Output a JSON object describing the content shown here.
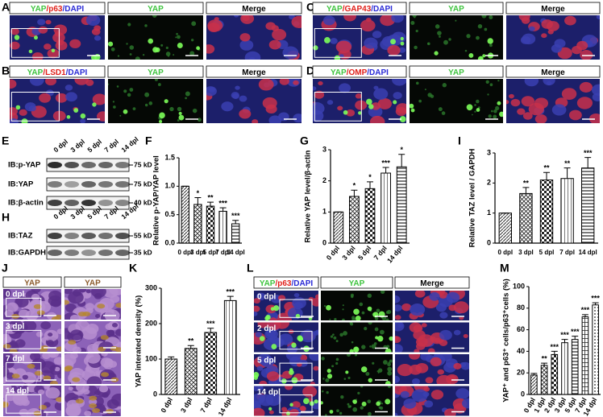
{
  "image_panels": [
    {
      "label": "A",
      "headers": [
        "YAP/p63/DAPI",
        "YAP",
        "Merge"
      ]
    },
    {
      "label": "C",
      "headers": [
        "YAP/GAP43/DAPI",
        "YAP",
        "Merge"
      ]
    },
    {
      "label": "B",
      "headers": [
        "YAP/LSD1/DAPI",
        "YAP",
        "Merge"
      ]
    },
    {
      "label": "D",
      "headers": [
        "YAP/OMP/DAPI",
        "YAP",
        "Merge"
      ]
    }
  ],
  "blots": [
    {
      "label": "E",
      "lanes": [
        "0 dpl",
        "3 dpl",
        "5 dpl",
        "7 dpl",
        "14 dpl"
      ],
      "rows": [
        {
          "name": "IB:p-YAP",
          "marker": "75 kD"
        },
        {
          "name": "IB:YAP",
          "marker": "75 kD"
        },
        {
          "name": "IB:β-actin",
          "marker": "40 kD"
        }
      ]
    },
    {
      "label": "H",
      "lanes": [
        "0 dpl",
        "3 dpl",
        "5 dpl",
        "7 dpl",
        "14 dpl"
      ],
      "rows": [
        {
          "name": "IB:TAZ",
          "marker": "55 kD"
        },
        {
          "name": "IB:GAPDH",
          "marker": "35 kD"
        }
      ]
    }
  ],
  "histology": {
    "label": "J",
    "headers": [
      "YAP",
      "YAP"
    ],
    "rows": [
      "0 dpl",
      "3 dpl",
      "7 dpl",
      "14 dpl"
    ]
  },
  "time_course": {
    "label": "L",
    "headers": [
      "YAP/p63/DAPI",
      "YAP",
      "Merge"
    ],
    "rows": [
      "0 dpl",
      "2 dpl",
      "5 dpl",
      "14 dpl"
    ]
  },
  "chart_data": [
    {
      "label": "F",
      "type": "bar",
      "y_label": "Relative p-YAP/YAP level",
      "categories": [
        "0 dpl",
        "3 dpl",
        "5 dpl",
        "7 dpl",
        "14 dpl"
      ],
      "values": [
        1,
        0.68,
        0.65,
        0.56,
        0.34
      ],
      "errors": [
        0,
        0.12,
        0.07,
        0.06,
        0.06
      ],
      "annotations": [
        null,
        "*",
        "**",
        "***",
        "***"
      ],
      "ylim": [
        0,
        1.5
      ],
      "yticks": [
        {
          "value": 0,
          "label": "0.0"
        },
        {
          "value": 0.5,
          "label": "0.5"
        },
        {
          "value": 1,
          "label": "1.0"
        },
        {
          "value": 1.5,
          "label": "1.5"
        }
      ]
    },
    {
      "label": "G",
      "type": "bar",
      "y_label": "Relative YAP level/β-actin",
      "categories": [
        "0 dpl",
        "3 dpl",
        "5 dpl",
        "7 dpl",
        "14 dpl"
      ],
      "values": [
        1,
        1.5,
        1.75,
        2.25,
        2.45
      ],
      "errors": [
        0,
        0.2,
        0.22,
        0.18,
        0.4
      ],
      "annotations": [
        null,
        "*",
        "*",
        "***",
        "*"
      ],
      "ylim": [
        0,
        3
      ],
      "yticks": [
        0,
        1,
        2,
        3
      ]
    },
    {
      "label": "I",
      "type": "bar",
      "y_label": "Relative TAZ level / GAPDH",
      "categories": [
        "0 dpl",
        "3 dpl",
        "5 dpl",
        "7 dpl",
        "14 dpl"
      ],
      "values": [
        1,
        1.65,
        2.1,
        2.15,
        2.5
      ],
      "errors": [
        0,
        0.2,
        0.25,
        0.35,
        0.35
      ],
      "annotations": [
        null,
        "**",
        "**",
        "**",
        "***"
      ],
      "ylim": [
        0,
        3
      ],
      "yticks": [
        0,
        1,
        2,
        3
      ]
    },
    {
      "label": "K",
      "type": "bar",
      "y_label": "YAP interated density (%)",
      "categories": [
        "0 dpl",
        "3 dpl",
        "7 dpl",
        "14 dpl"
      ],
      "values": [
        100,
        130,
        175,
        265
      ],
      "errors": [
        6,
        8,
        12,
        12
      ],
      "annotations": [
        null,
        "**",
        "***",
        "***"
      ],
      "ylim": [
        0,
        300
      ],
      "yticks": [
        0,
        100,
        200,
        300
      ]
    },
    {
      "label": "M",
      "type": "bar",
      "y_label": "YAP⁺ and p63⁺ cells/p63⁺cells (%)",
      "categories": [
        "0 dpl",
        "1 dpl",
        "2 dpl",
        "3 dpl",
        "5 dpl",
        "7 dpl",
        "14 dpl"
      ],
      "values": [
        18,
        27,
        37,
        48,
        51,
        72,
        83
      ],
      "errors": [
        1.5,
        2,
        3,
        3,
        3,
        2,
        2
      ],
      "annotations": [
        null,
        "**",
        "***",
        "***",
        "***",
        "***",
        "***"
      ],
      "ylim": [
        0,
        100
      ],
      "yticks": [
        0,
        20,
        40,
        60,
        80,
        100
      ]
    }
  ]
}
